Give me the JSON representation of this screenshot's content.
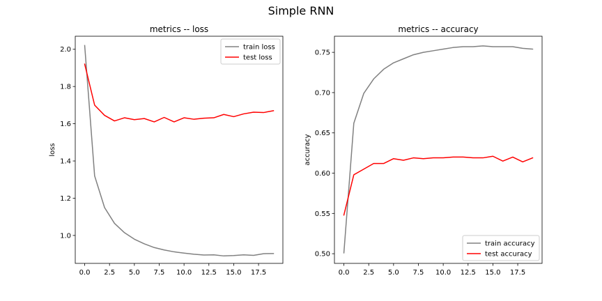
{
  "figure": {
    "title": "Simple RNN"
  },
  "chart_data": [
    {
      "type": "line",
      "title": "metrics -- loss",
      "xlabel": "",
      "ylabel": "loss",
      "x": [
        0,
        1,
        2,
        3,
        4,
        5,
        6,
        7,
        8,
        9,
        10,
        11,
        12,
        13,
        14,
        15,
        16,
        17,
        18,
        19
      ],
      "xlim": [
        -0.95,
        19.95
      ],
      "ylim": [
        0.85,
        2.07
      ],
      "xticks": [
        0.0,
        2.5,
        5.0,
        7.5,
        10.0,
        12.5,
        15.0,
        17.5
      ],
      "xtick_labels": [
        "0.0",
        "2.5",
        "5.0",
        "7.5",
        "10.0",
        "12.5",
        "15.0",
        "17.5"
      ],
      "yticks": [
        1.0,
        1.2,
        1.4,
        1.6,
        1.8,
        2.0
      ],
      "ytick_labels": [
        "1.0",
        "1.2",
        "1.4",
        "1.6",
        "1.8",
        "2.0"
      ],
      "grid": false,
      "legend_position": "top-right",
      "series": [
        {
          "name": "train loss",
          "color": "#808080",
          "values": [
            2.02,
            1.32,
            1.15,
            1.065,
            1.015,
            0.98,
            0.955,
            0.935,
            0.922,
            0.912,
            0.905,
            0.899,
            0.895,
            0.896,
            0.89,
            0.892,
            0.896,
            0.893,
            0.902,
            0.903
          ]
        },
        {
          "name": "test loss",
          "color": "#ff0000",
          "values": [
            1.92,
            1.7,
            1.645,
            1.615,
            1.632,
            1.622,
            1.628,
            1.61,
            1.634,
            1.61,
            1.632,
            1.624,
            1.63,
            1.632,
            1.65,
            1.638,
            1.653,
            1.662,
            1.66,
            1.67
          ]
        }
      ]
    },
    {
      "type": "line",
      "title": "metrics -- accuracy",
      "xlabel": "",
      "ylabel": "accuracy",
      "x": [
        0,
        1,
        2,
        3,
        4,
        5,
        6,
        7,
        8,
        9,
        10,
        11,
        12,
        13,
        14,
        15,
        16,
        17,
        18,
        19
      ],
      "xlim": [
        -0.95,
        19.95
      ],
      "ylim": [
        0.488,
        0.77
      ],
      "xticks": [
        0.0,
        2.5,
        5.0,
        7.5,
        10.0,
        12.5,
        15.0,
        17.5
      ],
      "xtick_labels": [
        "0.0",
        "2.5",
        "5.0",
        "7.5",
        "10.0",
        "12.5",
        "15.0",
        "17.5"
      ],
      "yticks": [
        0.5,
        0.55,
        0.6,
        0.65,
        0.7,
        0.75
      ],
      "ytick_labels": [
        "0.50",
        "0.55",
        "0.60",
        "0.65",
        "0.70",
        "0.75"
      ],
      "grid": false,
      "legend_position": "bottom-right",
      "series": [
        {
          "name": "train accuracy",
          "color": "#808080",
          "values": [
            0.501,
            0.662,
            0.699,
            0.717,
            0.729,
            0.737,
            0.742,
            0.747,
            0.75,
            0.752,
            0.754,
            0.756,
            0.757,
            0.757,
            0.758,
            0.757,
            0.757,
            0.757,
            0.755,
            0.754
          ]
        },
        {
          "name": "test accuracy",
          "color": "#ff0000",
          "values": [
            0.548,
            0.598,
            0.605,
            0.612,
            0.612,
            0.618,
            0.616,
            0.619,
            0.618,
            0.619,
            0.619,
            0.62,
            0.62,
            0.619,
            0.619,
            0.621,
            0.615,
            0.62,
            0.614,
            0.619
          ]
        }
      ]
    }
  ]
}
